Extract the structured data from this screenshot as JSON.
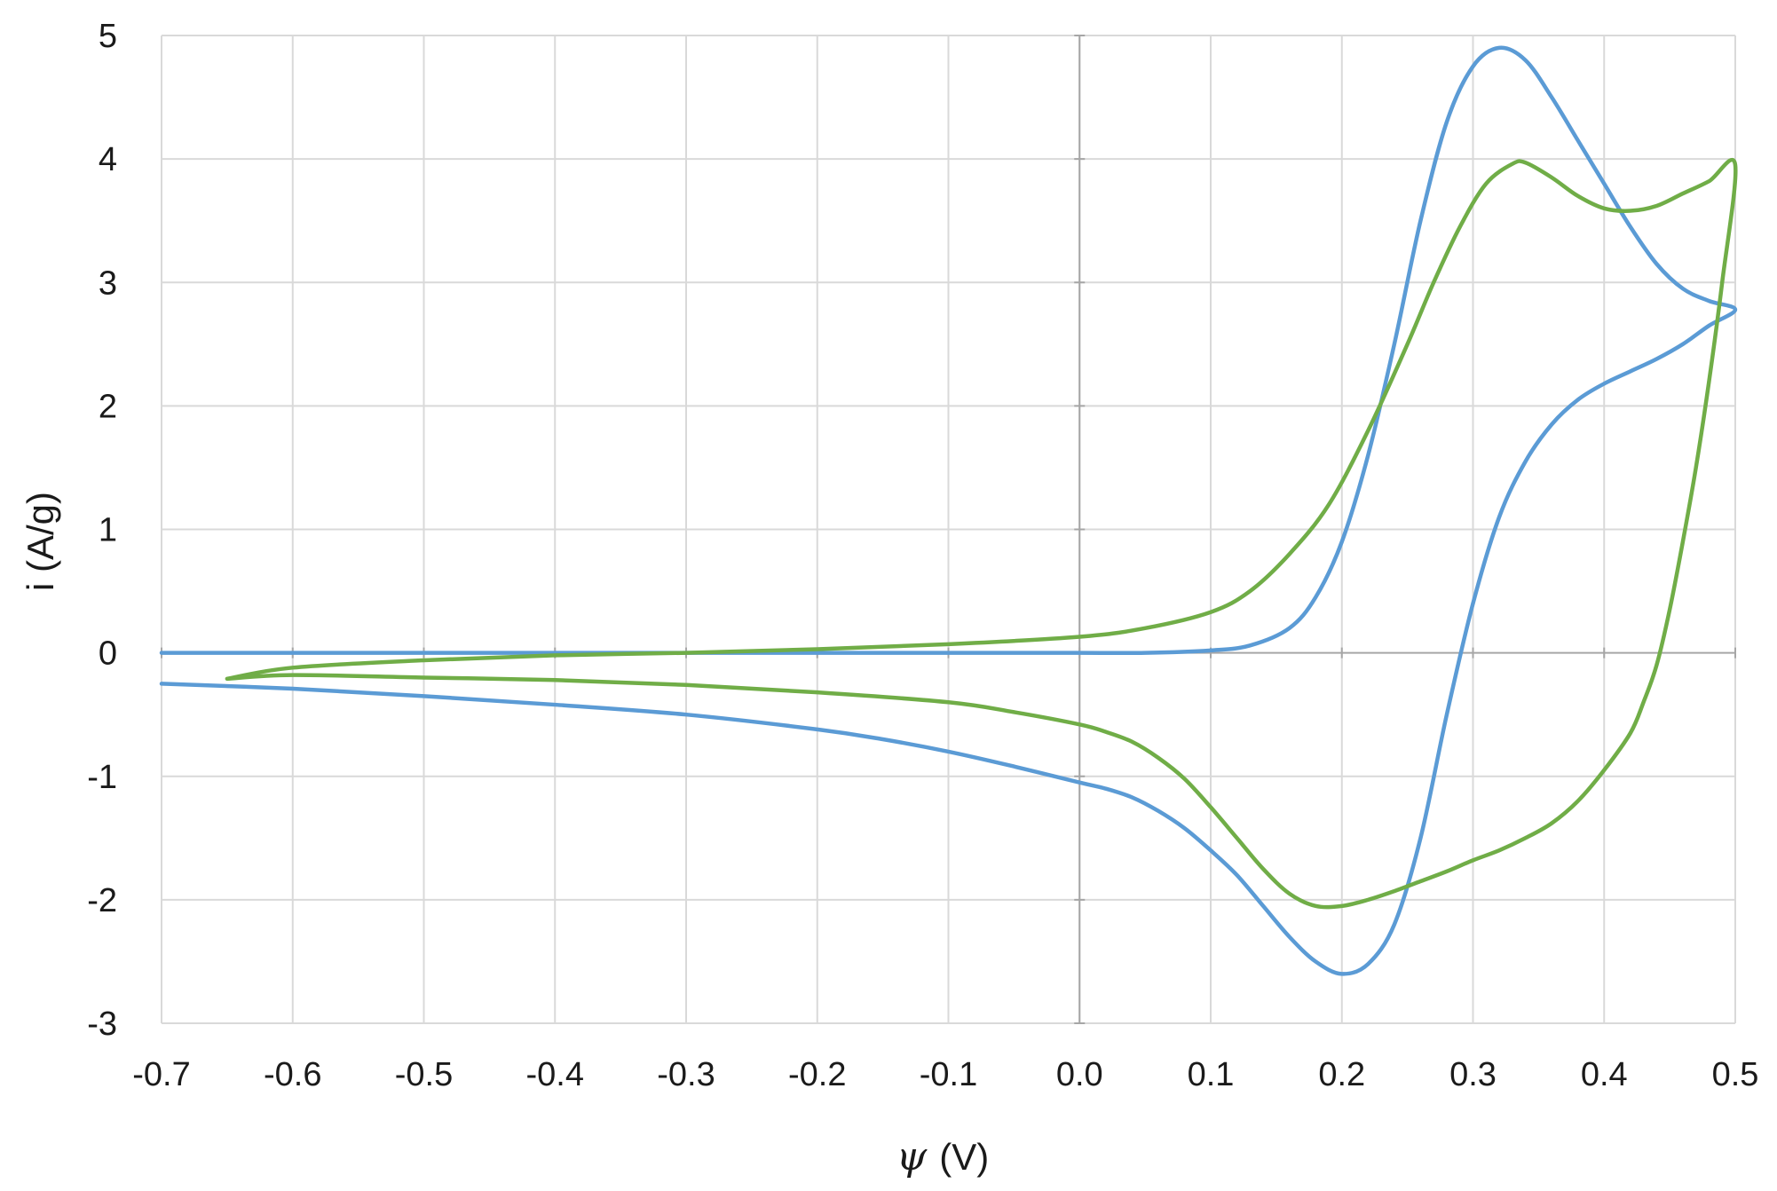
{
  "chart_data": {
    "type": "line",
    "title": "",
    "xlabel_symbol": "ψ",
    "xlabel_unit": "(V)",
    "ylabel": "i (A/g)",
    "xlim": [
      -0.7,
      0.5
    ],
    "ylim": [
      -3,
      5
    ],
    "x_ticks": [
      "-0.7",
      "-0.6",
      "-0.5",
      "-0.4",
      "-0.3",
      "-0.2",
      "-0.1",
      "0.0",
      "0.1",
      "0.2",
      "0.3",
      "0.4",
      "0.5"
    ],
    "y_ticks": [
      "5",
      "4",
      "3",
      "2",
      "1",
      "0",
      "-1",
      "-2",
      "-3"
    ],
    "grid": true,
    "legend": "none",
    "series": [
      {
        "color": "#5b9bd5",
        "points": [
          [
            -0.7,
            0.0
          ],
          [
            -0.5,
            0.0
          ],
          [
            -0.3,
            0.0
          ],
          [
            -0.1,
            0.0
          ],
          [
            0.0,
            0.0
          ],
          [
            0.05,
            0.0
          ],
          [
            0.1,
            0.02
          ],
          [
            0.13,
            0.06
          ],
          [
            0.16,
            0.2
          ],
          [
            0.18,
            0.45
          ],
          [
            0.2,
            0.9
          ],
          [
            0.22,
            1.6
          ],
          [
            0.24,
            2.5
          ],
          [
            0.26,
            3.5
          ],
          [
            0.28,
            4.3
          ],
          [
            0.3,
            4.75
          ],
          [
            0.32,
            4.9
          ],
          [
            0.34,
            4.8
          ],
          [
            0.36,
            4.5
          ],
          [
            0.38,
            4.15
          ],
          [
            0.4,
            3.8
          ],
          [
            0.42,
            3.45
          ],
          [
            0.44,
            3.15
          ],
          [
            0.46,
            2.95
          ],
          [
            0.48,
            2.85
          ],
          [
            0.5,
            2.78
          ],
          [
            0.48,
            2.65
          ],
          [
            0.46,
            2.5
          ],
          [
            0.44,
            2.38
          ],
          [
            0.42,
            2.28
          ],
          [
            0.4,
            2.18
          ],
          [
            0.38,
            2.05
          ],
          [
            0.36,
            1.85
          ],
          [
            0.34,
            1.55
          ],
          [
            0.32,
            1.1
          ],
          [
            0.3,
            0.4
          ],
          [
            0.28,
            -0.5
          ],
          [
            0.26,
            -1.5
          ],
          [
            0.24,
            -2.2
          ],
          [
            0.22,
            -2.52
          ],
          [
            0.2,
            -2.6
          ],
          [
            0.18,
            -2.5
          ],
          [
            0.16,
            -2.3
          ],
          [
            0.14,
            -2.05
          ],
          [
            0.12,
            -1.8
          ],
          [
            0.1,
            -1.6
          ],
          [
            0.08,
            -1.42
          ],
          [
            0.06,
            -1.28
          ],
          [
            0.04,
            -1.17
          ],
          [
            0.02,
            -1.1
          ],
          [
            0.0,
            -1.05
          ],
          [
            -0.05,
            -0.92
          ],
          [
            -0.1,
            -0.8
          ],
          [
            -0.15,
            -0.7
          ],
          [
            -0.2,
            -0.62
          ],
          [
            -0.3,
            -0.5
          ],
          [
            -0.4,
            -0.42
          ],
          [
            -0.5,
            -0.35
          ],
          [
            -0.6,
            -0.29
          ],
          [
            -0.7,
            -0.25
          ]
        ]
      },
      {
        "color": "#70ad47",
        "points": [
          [
            -0.65,
            -0.21
          ],
          [
            -0.6,
            -0.12
          ],
          [
            -0.5,
            -0.06
          ],
          [
            -0.4,
            -0.02
          ],
          [
            -0.3,
            0.0
          ],
          [
            -0.2,
            0.03
          ],
          [
            -0.1,
            0.07
          ],
          [
            0.0,
            0.13
          ],
          [
            0.05,
            0.2
          ],
          [
            0.1,
            0.33
          ],
          [
            0.13,
            0.5
          ],
          [
            0.16,
            0.8
          ],
          [
            0.19,
            1.2
          ],
          [
            0.22,
            1.8
          ],
          [
            0.25,
            2.5
          ],
          [
            0.27,
            3.0
          ],
          [
            0.29,
            3.45
          ],
          [
            0.31,
            3.8
          ],
          [
            0.33,
            3.96
          ],
          [
            0.34,
            3.97
          ],
          [
            0.36,
            3.85
          ],
          [
            0.38,
            3.7
          ],
          [
            0.4,
            3.6
          ],
          [
            0.42,
            3.58
          ],
          [
            0.44,
            3.62
          ],
          [
            0.46,
            3.72
          ],
          [
            0.48,
            3.82
          ],
          [
            0.5,
            3.95
          ],
          [
            0.49,
            3.0
          ],
          [
            0.48,
            2.2
          ],
          [
            0.47,
            1.5
          ],
          [
            0.46,
            0.9
          ],
          [
            0.45,
            0.35
          ],
          [
            0.44,
            -0.1
          ],
          [
            0.43,
            -0.4
          ],
          [
            0.42,
            -0.65
          ],
          [
            0.4,
            -0.95
          ],
          [
            0.38,
            -1.2
          ],
          [
            0.36,
            -1.38
          ],
          [
            0.34,
            -1.5
          ],
          [
            0.32,
            -1.6
          ],
          [
            0.3,
            -1.68
          ],
          [
            0.28,
            -1.77
          ],
          [
            0.26,
            -1.85
          ],
          [
            0.24,
            -1.93
          ],
          [
            0.22,
            -2.0
          ],
          [
            0.2,
            -2.05
          ],
          [
            0.18,
            -2.05
          ],
          [
            0.16,
            -1.95
          ],
          [
            0.14,
            -1.75
          ],
          [
            0.12,
            -1.5
          ],
          [
            0.1,
            -1.25
          ],
          [
            0.08,
            -1.02
          ],
          [
            0.06,
            -0.85
          ],
          [
            0.04,
            -0.72
          ],
          [
            0.02,
            -0.64
          ],
          [
            0.0,
            -0.58
          ],
          [
            -0.05,
            -0.48
          ],
          [
            -0.1,
            -0.4
          ],
          [
            -0.2,
            -0.32
          ],
          [
            -0.3,
            -0.26
          ],
          [
            -0.4,
            -0.22
          ],
          [
            -0.5,
            -0.2
          ],
          [
            -0.6,
            -0.18
          ],
          [
            -0.65,
            -0.21
          ]
        ]
      }
    ]
  }
}
